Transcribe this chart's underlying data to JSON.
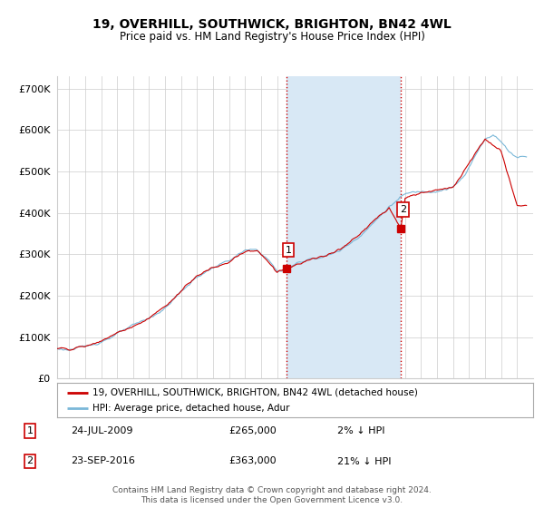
{
  "title": "19, OVERHILL, SOUTHWICK, BRIGHTON, BN42 4WL",
  "subtitle": "Price paid vs. HM Land Registry's House Price Index (HPI)",
  "ylabel_ticks": [
    "£0",
    "£100K",
    "£200K",
    "£300K",
    "£400K",
    "£500K",
    "£600K",
    "£700K"
  ],
  "ytick_values": [
    0,
    100000,
    200000,
    300000,
    400000,
    500000,
    600000,
    700000
  ],
  "ylim": [
    0,
    730000
  ],
  "xlim_start": 1995.25,
  "xlim_end": 2025.0,
  "hpi_color": "#7ab8d8",
  "price_color": "#cc0000",
  "shade_color": "#d8e8f5",
  "vline_color": "#cc0000",
  "point1_x": 2009.56,
  "point1_y": 265000,
  "point2_x": 2016.73,
  "point2_y": 363000,
  "legend_label1": "19, OVERHILL, SOUTHWICK, BRIGHTON, BN42 4WL (detached house)",
  "legend_label2": "HPI: Average price, detached house, Adur",
  "footer": "Contains HM Land Registry data © Crown copyright and database right 2024.\nThis data is licensed under the Open Government Licence v3.0.",
  "background_color": "#ffffff",
  "plot_bg_color": "#ffffff",
  "grid_color": "#cccccc"
}
